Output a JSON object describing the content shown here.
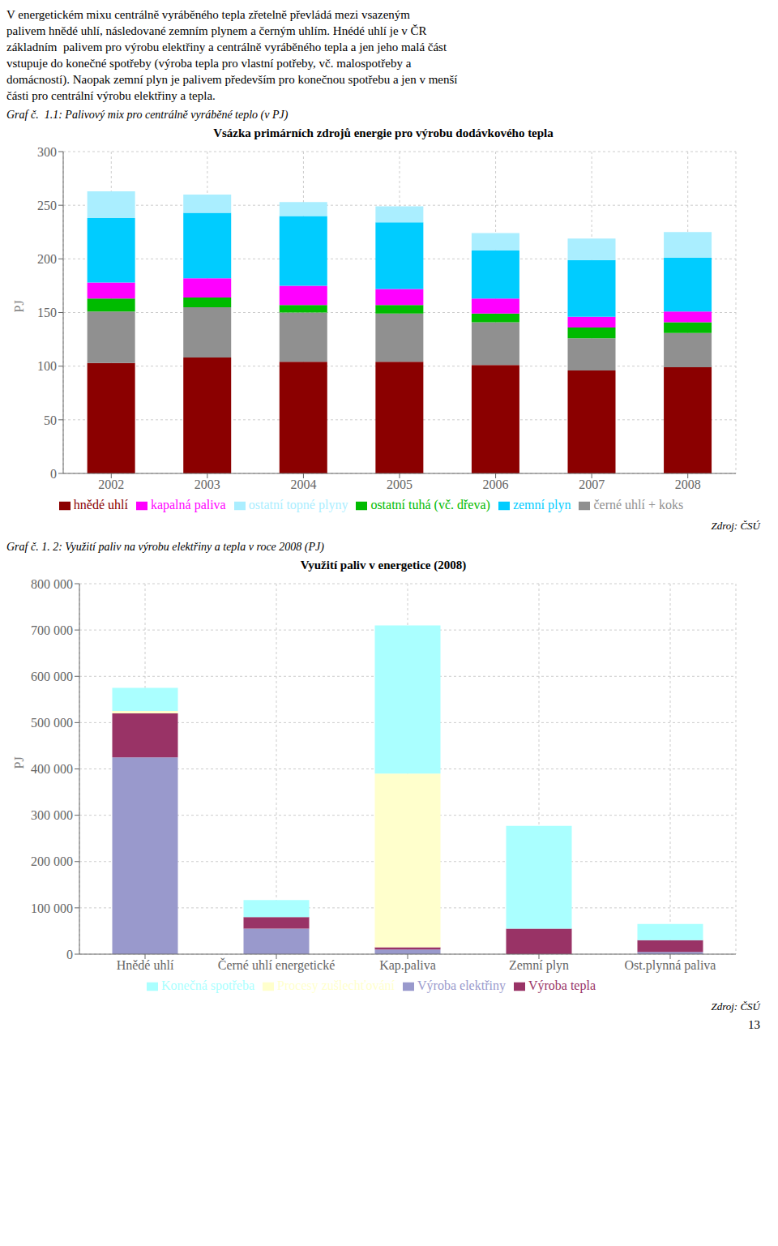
{
  "chart_data": [
    {
      "type": "bar",
      "title": "Vsázka primárních zdrojů energie pro výrobu dodávkového tepla",
      "subtitle": "Graf č.  1.1: Palivový mix pro centrálně vyráběné teplo (v PJ)",
      "ylabel": "PJ",
      "categories": [
        "2002",
        "2003",
        "2004",
        "2005",
        "2006",
        "2007",
        "2008"
      ],
      "series": [
        {
          "name": "hnědé uhlí",
          "color": "#8B0000",
          "values": [
            103,
            108,
            104,
            104,
            101,
            96,
            99
          ]
        },
        {
          "name": "černé uhlí + koks",
          "color": "#909090",
          "values": [
            48,
            47,
            46,
            45,
            40,
            30,
            32
          ]
        },
        {
          "name": "ostatní tuhá (vč. dřeva)",
          "color": "#00BB00",
          "values": [
            12,
            9,
            7,
            8,
            8,
            10,
            10
          ]
        },
        {
          "name": "kapalná paliva",
          "color": "#FF00FF",
          "values": [
            15,
            18,
            18,
            15,
            14,
            10,
            10
          ]
        },
        {
          "name": "zemní plyn",
          "color": "#00CCFF",
          "values": [
            60,
            61,
            65,
            62,
            45,
            53,
            50
          ]
        },
        {
          "name": "ostatní topné plyny",
          "color": "#AAEEFF",
          "values": [
            25,
            17,
            13,
            15,
            16,
            20,
            24
          ]
        }
      ],
      "ylim": [
        0,
        300
      ],
      "yticks": [
        0,
        50,
        100,
        150,
        200,
        250,
        300
      ],
      "grid": true,
      "legend": "bottom",
      "stacked": true,
      "annotations": [
        "V energetickém mixu centrálně vyráběného tepla zřetelně převládá mezi vsazeným",
        "palivem hnědé uhlí, následované zemním plynem a černým uhlím. Hnédé uhlí je v ČR",
        "základním  palivem pro výrobu elektřiny a centrálně vyráběného tepla a jen jeho malá část",
        "vstupuje do konečné spotřeby (výroba tepla pro vlastní potřeby, vč. malospotřeby a",
        "domácností). Naopak zemní plyn je palivem především pro konečnou spotřebu a jen v menší",
        "části pro centrální výrobu elektřiny a tepla.",
        "Zdroj: ČSÚ"
      ]
    },
    {
      "type": "bar",
      "title": "Využití paliv v energetice (2008)",
      "subtitle": "Graf č. 1. 2: Využití paliv na výrobu elektřiny a tepla v roce 2008 (PJ)",
      "ylabel": "PJ",
      "categories": [
        "Hnědé uhlí",
        "Černé uhlí energetické",
        "Kap.paliva",
        "Zemní plyn",
        "Ost.plynná paliva"
      ],
      "series": [
        {
          "name": "Výroba elektřiny",
          "color": "#9999CC",
          "values": [
            425000,
            55000,
            10000,
            0,
            5000
          ]
        },
        {
          "name": "Výroba tepla",
          "color": "#993366",
          "values": [
            95000,
            25000,
            5000,
            55000,
            25000
          ]
        },
        {
          "name": "Procesy zušlechťování",
          "color": "#FFFFCC",
          "values": [
            5000,
            0,
            375000,
            0,
            0
          ]
        },
        {
          "name": "Konečná spotřeba",
          "color": "#AAFFFF",
          "values": [
            50000,
            37000,
            320000,
            222000,
            35000
          ]
        }
      ],
      "ylim": [
        0,
        800000
      ],
      "yticks": [
        0,
        {
          "value": 100000,
          "label": "100 000"
        },
        {
          "value": 200000,
          "label": "200 000"
        },
        {
          "value": 300000,
          "label": "300 000"
        },
        {
          "value": 400000,
          "label": "400 000"
        },
        {
          "value": 500000,
          "label": "500 000"
        },
        {
          "value": 600000,
          "label": "600 000"
        },
        {
          "value": 700000,
          "label": "700 000"
        },
        {
          "value": 800000,
          "label": "800 000"
        }
      ],
      "grid": true,
      "legend": "bottom",
      "stacked": true,
      "annotations": [
        "Zdroj: ČSÚ",
        "13"
      ]
    }
  ]
}
